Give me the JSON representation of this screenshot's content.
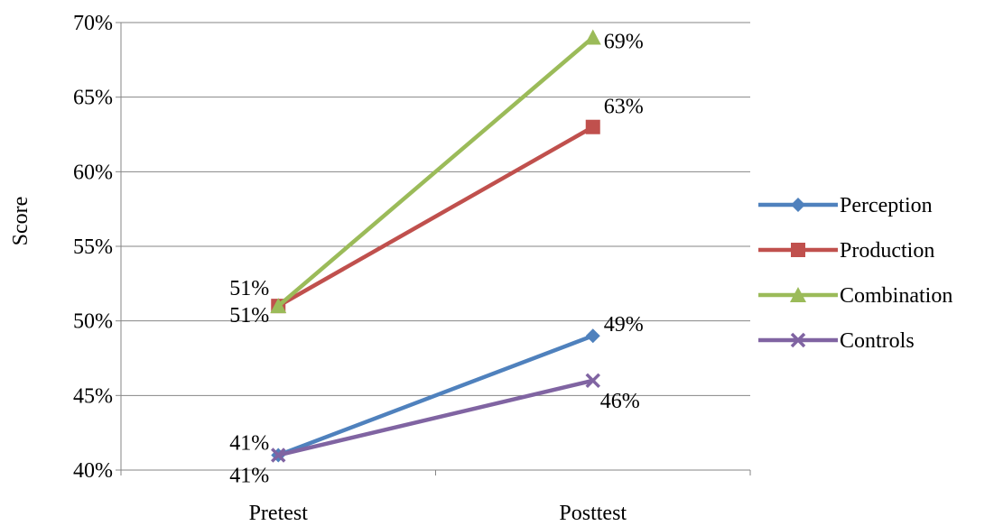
{
  "chart_data": {
    "type": "line",
    "categories": [
      "Pretest",
      "Posttest"
    ],
    "ylabel": "Score",
    "ylim": [
      0.4,
      0.7
    ],
    "yticks": [
      "40%",
      "45%",
      "50%",
      "55%",
      "60%",
      "65%",
      "70%"
    ],
    "grid": true,
    "legend_position": "right",
    "series": [
      {
        "name": "Perception",
        "values": [
          0.41,
          0.49
        ],
        "labels": [
          "41%",
          "49%"
        ],
        "color": "#4F81BD",
        "marker": "diamond"
      },
      {
        "name": "Production",
        "values": [
          0.51,
          0.63
        ],
        "labels": [
          "51%",
          "63%"
        ],
        "color": "#C0504D",
        "marker": "square"
      },
      {
        "name": "Combination",
        "values": [
          0.51,
          0.69
        ],
        "labels": [
          "51%",
          "69%"
        ],
        "color": "#9BBB59",
        "marker": "triangle"
      },
      {
        "name": "Controls",
        "values": [
          0.41,
          0.46
        ],
        "labels": [
          "41%",
          "46%"
        ],
        "color": "#8064A2",
        "marker": "x"
      }
    ]
  }
}
